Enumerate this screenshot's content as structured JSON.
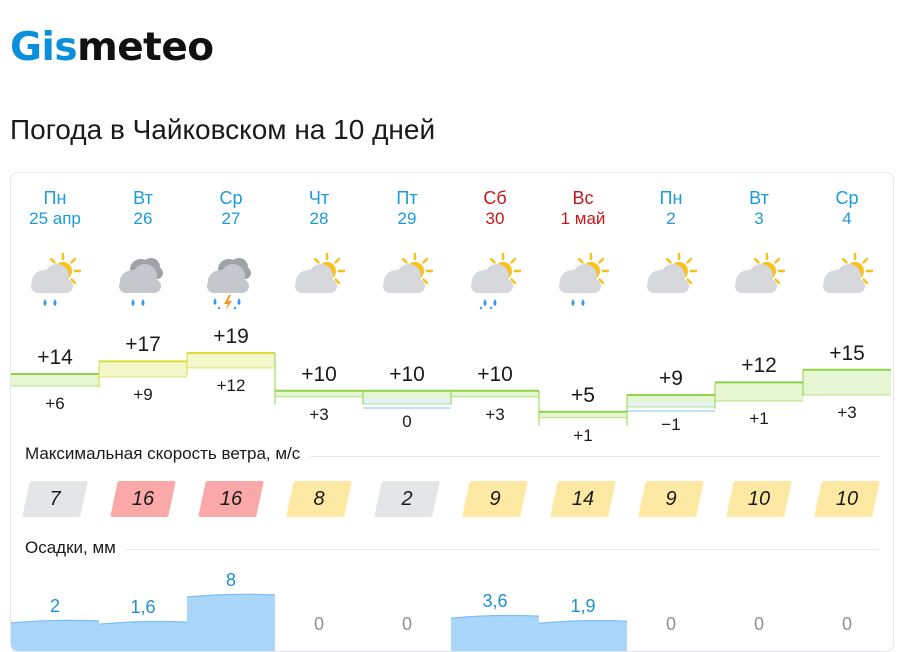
{
  "header": {
    "logo_part1": "Gis",
    "logo_part2": "meteo",
    "title": "Погода в Чайковском на 10 дней"
  },
  "sections": {
    "wind_title": "Максимальная скорость ветра, м/с",
    "precip_title": "Осадки, мм"
  },
  "colors": {
    "brand_blue": "#0a8fdc",
    "weekend_red": "#c8171a",
    "temp_green_line": "#8ed34a",
    "temp_green_fill": "#e6f6d2",
    "temp_yellow_line": "#d8db3a",
    "temp_yellow_fill": "#f1f7c9",
    "temp_blue_line": "#aad8f2",
    "temp_blue_fill": "#e3f3fb",
    "precip_fill": "#a9d6fb",
    "precip_line": "#2f95ee",
    "wind_gray": "#e4e5e7",
    "wind_red": "#fba8a8",
    "wind_yellow": "#fde9a4"
  },
  "days": [
    {
      "name": "Пн",
      "date": "25 апр",
      "weekend": false,
      "icon": "partly-cloudy-rain-icon",
      "max": "+14",
      "min": "+6",
      "max_num": 14,
      "min_num": 6,
      "wind": "7",
      "wind_level": "gray",
      "precip": "2",
      "precip_num": 2
    },
    {
      "name": "Вт",
      "date": "26",
      "weekend": false,
      "icon": "cloudy-rain-icon",
      "max": "+17",
      "min": "+9",
      "max_num": 17,
      "min_num": 9,
      "wind": "16",
      "wind_level": "red",
      "precip": "1,6",
      "precip_num": 1.6
    },
    {
      "name": "Ср",
      "date": "27",
      "weekend": false,
      "icon": "cloudy-thunder-rain-icon",
      "max": "+19",
      "min": "+12",
      "max_num": 19,
      "min_num": 12,
      "wind": "16",
      "wind_level": "red",
      "precip": "8",
      "precip_num": 8
    },
    {
      "name": "Чт",
      "date": "28",
      "weekend": false,
      "icon": "partly-cloudy-icon",
      "max": "+10",
      "min": "+3",
      "max_num": 10,
      "min_num": 3,
      "wind": "8",
      "wind_level": "yellow",
      "precip": "0",
      "precip_num": 0
    },
    {
      "name": "Пт",
      "date": "29",
      "weekend": false,
      "icon": "partly-cloudy-icon",
      "max": "+10",
      "min": "0",
      "max_num": 10,
      "min_num": 0,
      "wind": "2",
      "wind_level": "gray",
      "precip": "0",
      "precip_num": 0
    },
    {
      "name": "Сб",
      "date": "30",
      "weekend": true,
      "icon": "partly-cloudy-rain-icon",
      "max": "+10",
      "min": "+3",
      "max_num": 10,
      "min_num": 3,
      "wind": "9",
      "wind_level": "yellow",
      "precip": "3,6",
      "precip_num": 3.6
    },
    {
      "name": "Вс",
      "date": "1 май",
      "weekend": true,
      "icon": "partly-cloudy-rain-icon",
      "max": "+5",
      "min": "+1",
      "max_num": 5,
      "min_num": 1,
      "wind": "14",
      "wind_level": "yellow",
      "precip": "1,9",
      "precip_num": 1.9
    },
    {
      "name": "Пн",
      "date": "2",
      "weekend": false,
      "icon": "partly-cloudy-icon",
      "max": "+9",
      "min": "−1",
      "max_num": 9,
      "min_num": -1,
      "wind": "9",
      "wind_level": "yellow",
      "precip": "0",
      "precip_num": 0
    },
    {
      "name": "Вт",
      "date": "3",
      "weekend": false,
      "icon": "partly-cloudy-icon",
      "max": "+12",
      "min": "+1",
      "max_num": 12,
      "min_num": 1,
      "wind": "10",
      "wind_level": "yellow",
      "precip": "0",
      "precip_num": 0
    },
    {
      "name": "Ср",
      "date": "4",
      "weekend": false,
      "icon": "partly-cloudy-icon",
      "max": "+15",
      "min": "+3",
      "max_num": 15,
      "min_num": 3,
      "wind": "10",
      "wind_level": "yellow",
      "precip": "0",
      "precip_num": 0
    }
  ]
}
